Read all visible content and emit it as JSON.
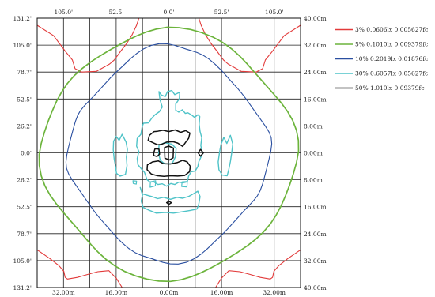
{
  "chart_data": {
    "type": "contour",
    "title": "",
    "top_ticks": [
      "105.0'",
      "52.5'",
      "0.0'",
      "52.5'",
      "105.0'"
    ],
    "bottom_ticks": [
      "32.00m",
      "16.00m",
      "0.00m",
      "16.00m",
      "32.00m"
    ],
    "left_ticks": [
      "131.2'",
      "105.0'",
      "78.7'",
      "52.5'",
      "26.2'",
      "0.0'",
      "26.2'",
      "52.5'",
      "78.7'",
      "105.0'",
      "131.2'"
    ],
    "right_ticks": [
      "40.00m",
      "32.00m",
      "24.00m",
      "16.00m",
      "8.00m",
      "0.00m",
      "8.00m",
      "16.00m",
      "24.00m",
      "32.00m",
      "40.00m"
    ],
    "x_range_m": [
      -40,
      40
    ],
    "y_range_m": [
      -40,
      40
    ],
    "grid": true,
    "legend_position": "top-right",
    "series": [
      {
        "name": "3% 0.0606lx 0.005627fc",
        "color": "#e23a3a",
        "level_percent": 3
      },
      {
        "name": "5% 0.1010lx 0.009379fc",
        "color": "#6cb43c",
        "level_percent": 5
      },
      {
        "name": "10% 0.2019lx 0.01876fc",
        "color": "#2a4fa0",
        "level_percent": 10
      },
      {
        "name": "30% 0.6057lx 0.05627fc",
        "color": "#4fc3c8",
        "level_percent": 30
      },
      {
        "name": "50% 1.010lx 0.09379fc",
        "color": "#111111",
        "level_percent": 50
      }
    ]
  }
}
